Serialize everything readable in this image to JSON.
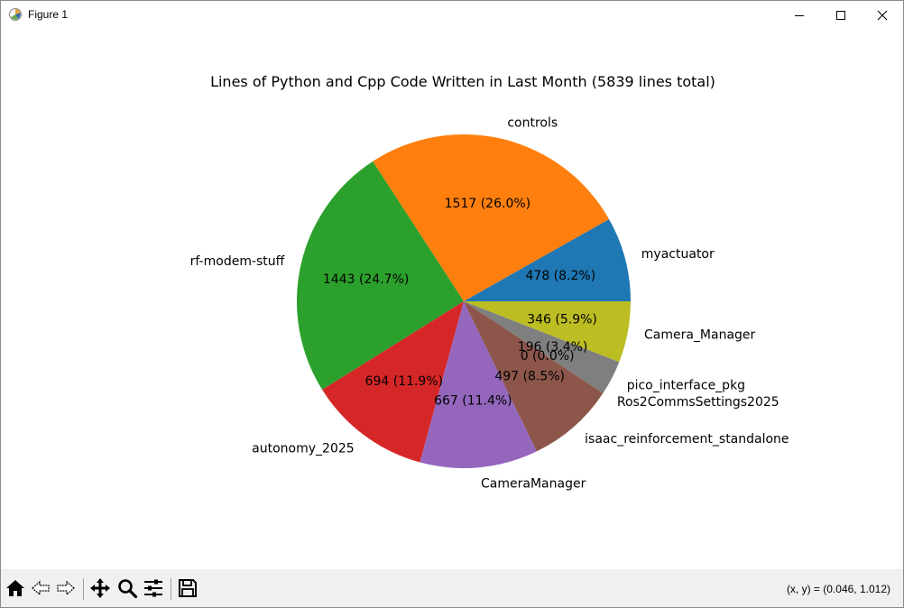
{
  "window": {
    "title": "Figure 1"
  },
  "toolbar": {
    "buttons": [
      "home-icon",
      "back-icon",
      "forward-icon",
      "pan-icon",
      "zoom-icon",
      "configure-subplots-icon",
      "save-icon"
    ],
    "coords": "(x, y) = (0.046, 1.012)"
  },
  "chart_data": {
    "type": "pie",
    "title": "Lines of Python and Cpp Code Written in Last Month (5839 lines total)",
    "slices": [
      {
        "label": "myactuator",
        "value": 478,
        "pct_label": "478 (8.2%)",
        "color": "#1f77b4"
      },
      {
        "label": "controls",
        "value": 1517,
        "pct_label": "1517 (26.0%)",
        "color": "#ff7f0e"
      },
      {
        "label": "rf-modem-stuff",
        "value": 1443,
        "pct_label": "1443 (24.7%)",
        "color": "#2ca02c"
      },
      {
        "label": "autonomy_2025",
        "value": 694,
        "pct_label": "694 (11.9%)",
        "color": "#d62728"
      },
      {
        "label": "CameraManager",
        "value": 667,
        "pct_label": "667 (11.4%)",
        "color": "#9467bd"
      },
      {
        "label": "isaac_reinforcement_standalone",
        "value": 497,
        "pct_label": "497 (8.5%)",
        "color": "#8c564b"
      },
      {
        "label": "Ros2CommsSettings2025",
        "value": 0,
        "pct_label": "0 (0.0%)",
        "color": "#e377c2"
      },
      {
        "label": "pico_interface_pkg",
        "value": 196,
        "pct_label": "196 (3.4%)",
        "color": "#7f7f7f"
      },
      {
        "label": "Camera_Manager",
        "value": 346,
        "pct_label": "346 (5.9%)",
        "color": "#bcbd22"
      }
    ],
    "start_angle_deg": 0,
    "direction": "counterclockwise"
  }
}
